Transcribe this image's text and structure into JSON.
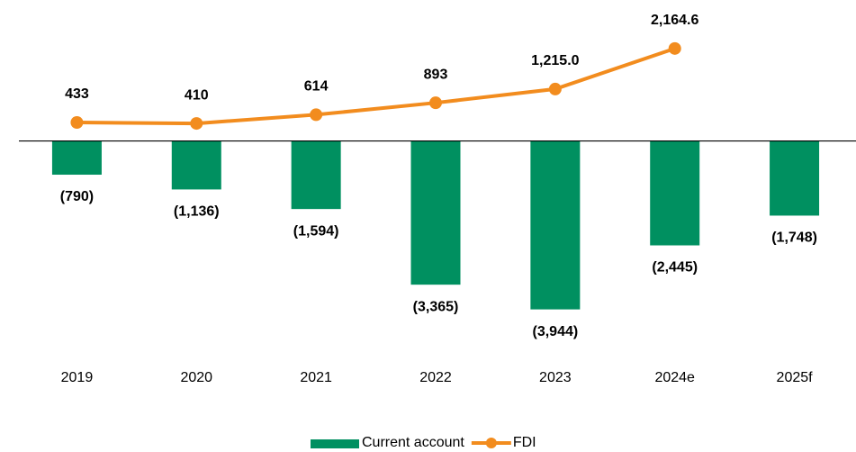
{
  "chart_data": {
    "type": "combo",
    "categories": [
      "2019",
      "2020",
      "2021",
      "2022",
      "2023",
      "2024e",
      "2025f"
    ],
    "series": [
      {
        "name": "Current account",
        "type": "bar",
        "color": "#009060",
        "values": [
          -790,
          -1136,
          -1594,
          -3365,
          -3944,
          -2445,
          -1748
        ],
        "value_labels": [
          "(790)",
          "(1,136)",
          "(1,594)",
          "(3,365)",
          "(3,944)",
          "(2,445)",
          "(1,748)"
        ]
      },
      {
        "name": "FDI",
        "type": "line",
        "color": "#f28c1e",
        "values": [
          433,
          410,
          614,
          893,
          1215.0,
          2164.6,
          null
        ],
        "value_labels": [
          "433",
          "410",
          "614",
          "893",
          "1,215.0",
          "2,164.6",
          null
        ]
      }
    ],
    "ylim": [
      -4500,
      3300
    ]
  }
}
